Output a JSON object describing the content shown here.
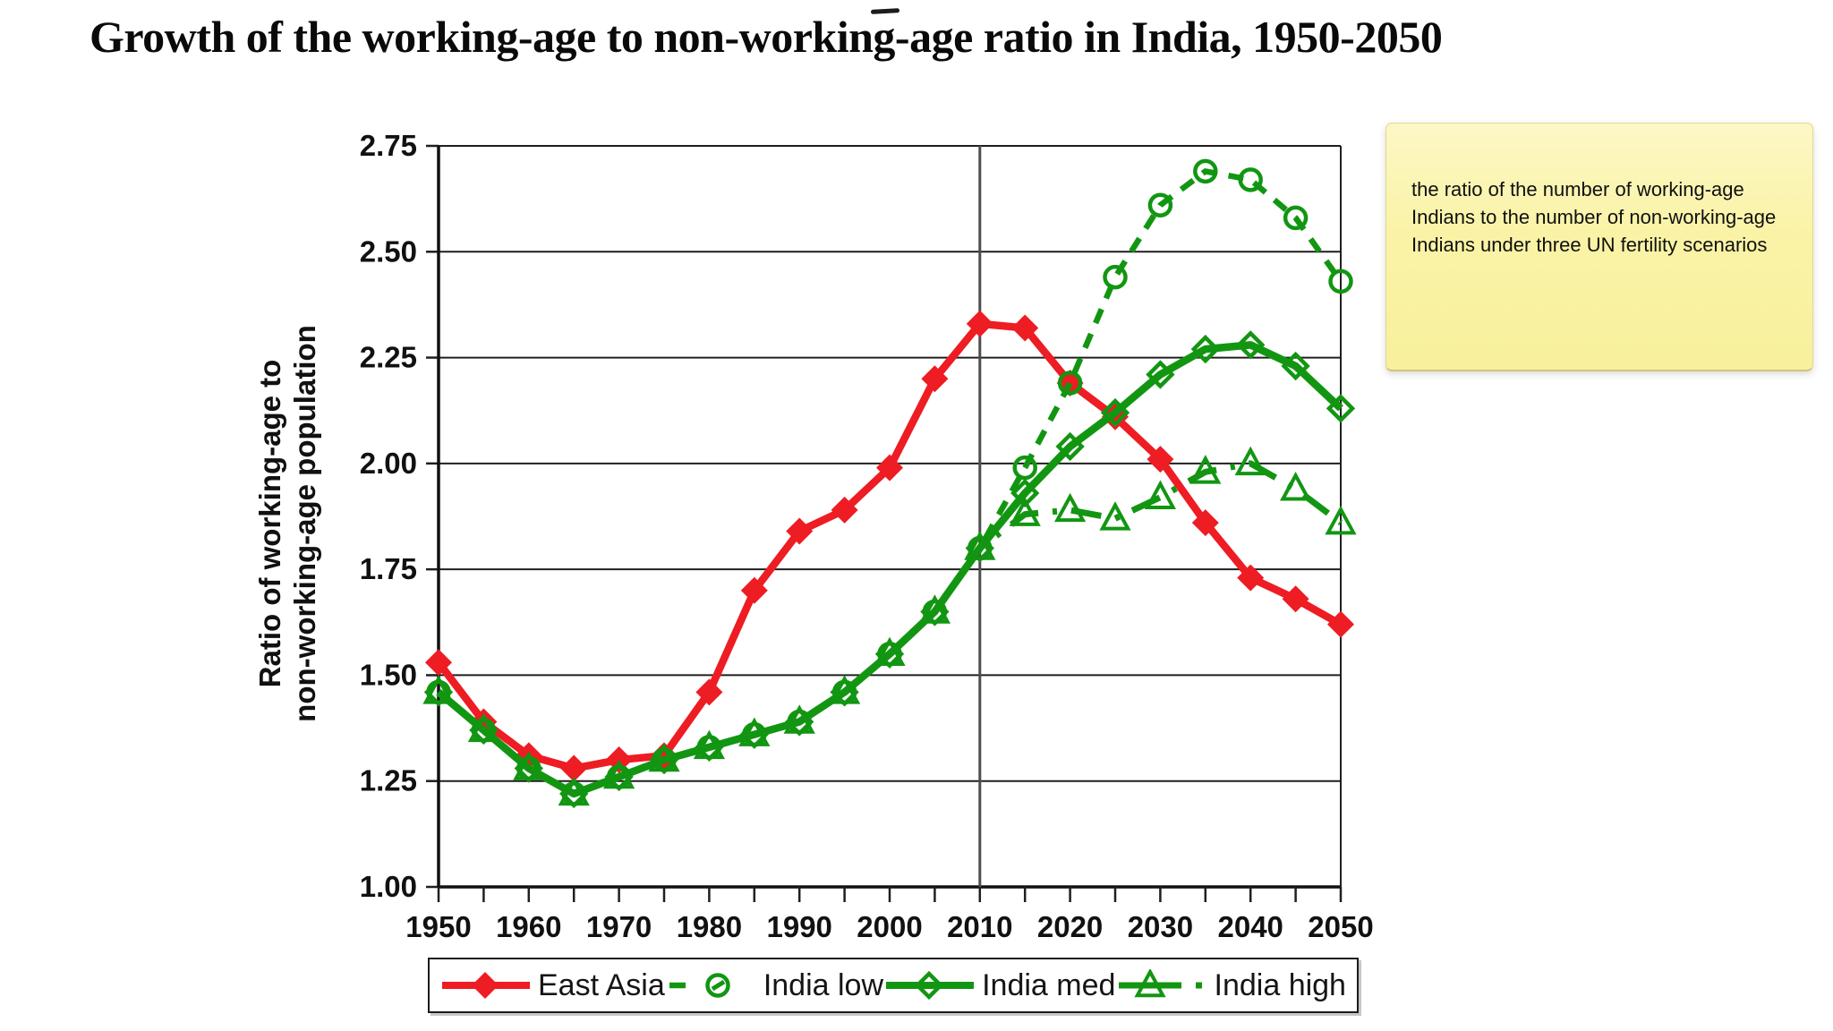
{
  "note": {
    "text": "the ratio of the number of working-age Indians to the number of non-working-age Indians under three UN fertility scenarios"
  },
  "chart_data": {
    "type": "line",
    "title": "Growth of the working-age to non-working-age ratio in India, 1950-2050",
    "xlabel": "",
    "ylabel": "Ratio of working-age to non-working-age population",
    "ylabel_lines": [
      "Ratio of working-age to",
      "non-working-age population"
    ],
    "xlim": [
      1950,
      2050
    ],
    "ylim": [
      1.0,
      2.75
    ],
    "grid": "horizontal",
    "legend_position": "bottom",
    "reference_line_x": 2010,
    "x": [
      1950,
      1955,
      1960,
      1965,
      1970,
      1975,
      1980,
      1985,
      1990,
      1995,
      2000,
      2005,
      2010,
      2015,
      2020,
      2025,
      2030,
      2035,
      2040,
      2045,
      2050
    ],
    "x_tick_labels": [
      "1950",
      "1960",
      "1970",
      "1980",
      "1990",
      "2000",
      "2010",
      "2020",
      "2030",
      "2040",
      "2050"
    ],
    "y_ticks": [
      "1.00",
      "1.25",
      "1.50",
      "1.75",
      "2.00",
      "2.25",
      "2.50",
      "2.75"
    ],
    "colors": {
      "east_asia_red": "#ee1c23",
      "india_green": "#129612",
      "reference_line": "#4d4d4d",
      "note_yellow": "#faf3a6"
    },
    "series": [
      {
        "name": "East Asia",
        "color": "#ee1c23",
        "line": "solid",
        "marker": "filled-diamond",
        "values": [
          1.53,
          1.39,
          1.31,
          1.28,
          1.3,
          1.31,
          1.46,
          1.7,
          1.84,
          1.89,
          1.99,
          2.2,
          2.33,
          2.32,
          2.19,
          2.11,
          2.01,
          1.86,
          1.73,
          1.68,
          1.62
        ]
      },
      {
        "name": "India low",
        "color": "#129612",
        "line": "dashed",
        "marker": "open-circle",
        "values": [
          1.46,
          1.37,
          1.28,
          1.22,
          1.26,
          1.3,
          1.33,
          1.36,
          1.39,
          1.46,
          1.55,
          1.65,
          1.8,
          1.99,
          2.19,
          2.44,
          2.61,
          2.69,
          2.67,
          2.58,
          2.43
        ]
      },
      {
        "name": "India med",
        "color": "#129612",
        "line": "solid",
        "marker": "open-diamond",
        "values": [
          1.46,
          1.37,
          1.28,
          1.22,
          1.26,
          1.3,
          1.33,
          1.36,
          1.39,
          1.46,
          1.55,
          1.65,
          1.8,
          1.93,
          2.04,
          2.12,
          2.21,
          2.27,
          2.28,
          2.23,
          2.13
        ]
      },
      {
        "name": "India high",
        "color": "#129612",
        "line": "dash-dot",
        "marker": "open-triangle",
        "values": [
          1.46,
          1.37,
          1.28,
          1.22,
          1.26,
          1.3,
          1.33,
          1.36,
          1.39,
          1.46,
          1.55,
          1.65,
          1.8,
          1.88,
          1.89,
          1.87,
          1.92,
          1.98,
          2.0,
          1.94,
          1.86
        ]
      }
    ]
  }
}
